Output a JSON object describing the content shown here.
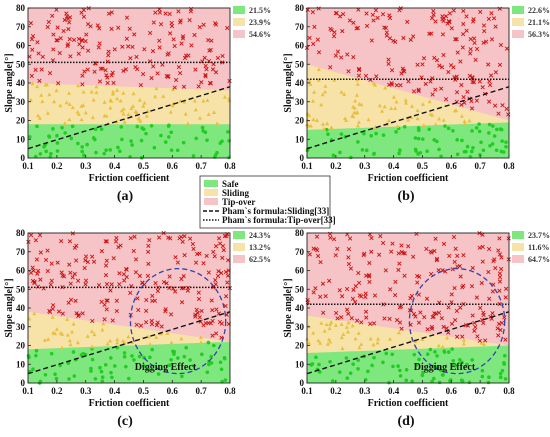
{
  "x_label": "Friction coefficient",
  "y_label": "Slope angle[°]",
  "x_ticks": [
    "0.1",
    "0.2",
    "0.3",
    "0.4",
    "0.5",
    "0.6",
    "0.7",
    "0.8"
  ],
  "y_ticks": [
    "0",
    "10",
    "20",
    "30",
    "40",
    "50",
    "60",
    "70",
    "80"
  ],
  "colors": {
    "safe": "#7ee87e",
    "sliding": "#f7e2a8",
    "tipover": "#f6c3c6",
    "safe_marker": "#22cc22",
    "sliding_marker": "#e8c040",
    "tipover_marker": "#cc1111"
  },
  "legend": {
    "safe": "Safe",
    "sliding": "Sliding",
    "tipover": "Tip-over",
    "pham_sliding": "Pham`s formula:Sliding[33]",
    "pham_tipover": "Pham`s formula:Tip-over[33]"
  },
  "chart_data": [
    {
      "panel": "(a)",
      "type": "scatter",
      "xlim": [
        0.1,
        0.8
      ],
      "ylim": [
        0,
        80
      ],
      "percentages": [
        "21.5%",
        "23.9%",
        "54.6%"
      ],
      "safe_top": [
        18,
        18
      ],
      "sliding_top": [
        40,
        36
      ],
      "sliding_line": [
        [
          0.1,
          5
        ],
        [
          0.8,
          38
        ]
      ],
      "tipover_line_y": 51,
      "annotation": ""
    },
    {
      "panel": "(b)",
      "type": "scatter",
      "xlim": [
        0.1,
        0.8
      ],
      "ylim": [
        0,
        80
      ],
      "percentages": [
        "22.6%",
        "21.1%",
        "56.3%"
      ],
      "safe_top": [
        15,
        19
      ],
      "sliding_top": [
        50,
        20
      ],
      "sliding_line": [
        [
          0.1,
          5
        ],
        [
          0.8,
          38
        ]
      ],
      "tipover_line_y": 42,
      "annotation": ""
    },
    {
      "panel": "(c)",
      "type": "scatter",
      "xlim": [
        0.1,
        0.8
      ],
      "ylim": [
        0,
        80
      ],
      "percentages": [
        "24.3%",
        "13.2%",
        "62.5%"
      ],
      "safe_top": [
        18,
        22
      ],
      "sliding_top": [
        38,
        22
      ],
      "sliding_line": [
        [
          0.1,
          5
        ],
        [
          0.8,
          38
        ]
      ],
      "tipover_line_y": 51,
      "annotation": "Digging Effect"
    },
    {
      "panel": "(d)",
      "type": "scatter",
      "xlim": [
        0.1,
        0.8
      ],
      "ylim": [
        0,
        80
      ],
      "percentages": [
        "23.7%",
        "11.6%",
        "64.7%"
      ],
      "safe_top": [
        16,
        20
      ],
      "sliding_top": [
        36,
        20
      ],
      "sliding_line": [
        [
          0.1,
          5
        ],
        [
          0.8,
          38
        ]
      ],
      "tipover_line_y": 42,
      "annotation": "Digging Effect"
    }
  ]
}
